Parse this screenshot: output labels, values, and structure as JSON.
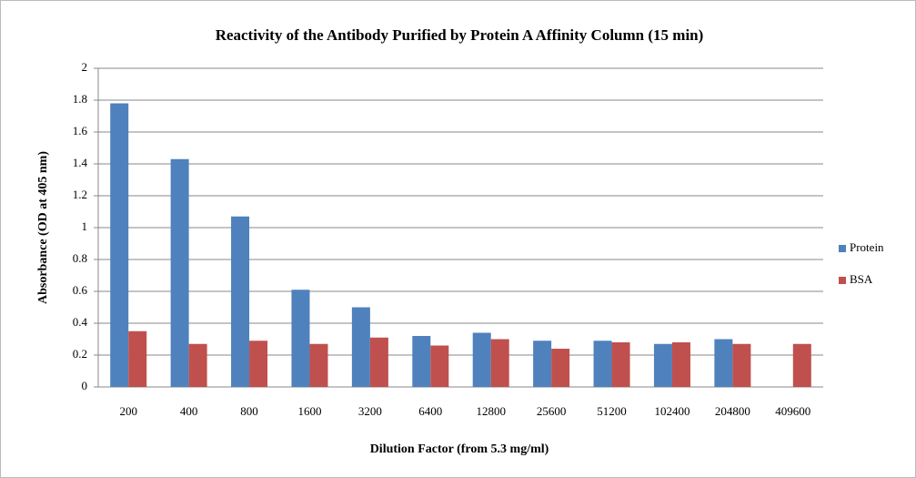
{
  "chart_data": {
    "type": "bar",
    "title": "Reactivity of the Antibody Purified by Protein A Affinity Column (15 min)",
    "x_label": "Dilution Factor (from 5.3 mg/ml)",
    "y_label": "Absorbance (OD at 405 nm)",
    "categories": [
      "200",
      "400",
      "800",
      "1600",
      "3200",
      "6400",
      "12800",
      "25600",
      "51200",
      "102400",
      "204800",
      "409600"
    ],
    "series": [
      {
        "name": "Protein",
        "color": "#4f81bd",
        "values": [
          1.78,
          1.43,
          1.07,
          0.61,
          0.5,
          0.32,
          0.34,
          0.29,
          0.29,
          0.27,
          0.3,
          null
        ]
      },
      {
        "name": "BSA",
        "color": "#c0504d",
        "values": [
          0.35,
          0.27,
          0.29,
          0.27,
          0.31,
          0.26,
          0.3,
          0.24,
          0.28,
          0.28,
          0.27,
          0.27
        ]
      }
    ],
    "ylim": [
      0,
      2
    ],
    "yticks": [
      0,
      0.2,
      0.4,
      0.6,
      0.8,
      1,
      1.2,
      1.4,
      1.6,
      1.8,
      2
    ],
    "grid": true,
    "legend": "right"
  }
}
